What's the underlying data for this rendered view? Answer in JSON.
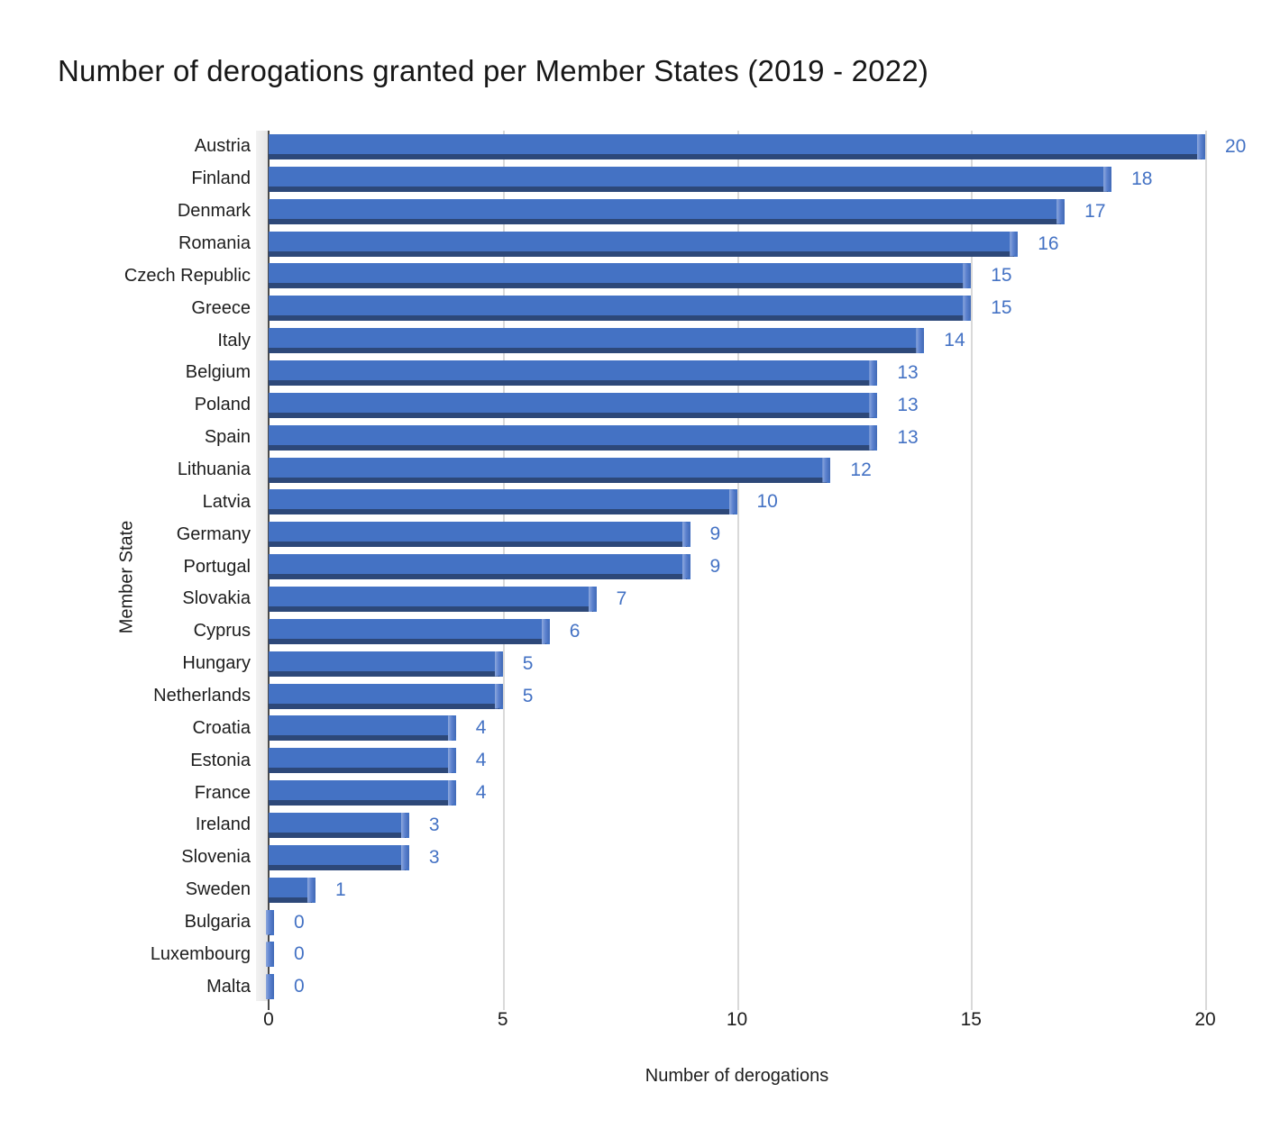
{
  "chart_data": {
    "type": "bar",
    "orientation": "horizontal",
    "title": "Number of derogations granted per Member States (2019 - 2022)",
    "xlabel": "Number of derogations",
    "ylabel": "Member State",
    "categories": [
      "Austria",
      "Finland",
      "Denmark",
      "Romania",
      "Czech Republic",
      "Greece",
      "Italy",
      "Belgium",
      "Poland",
      "Spain",
      "Lithuania",
      "Latvia",
      "Germany",
      "Portugal",
      "Slovakia",
      "Cyprus",
      "Hungary",
      "Netherlands",
      "Croatia",
      "Estonia",
      "France",
      "Ireland",
      "Slovenia",
      "Sweden",
      "Bulgaria",
      "Luxembourg",
      "Malta"
    ],
    "values": [
      20,
      18,
      17,
      16,
      15,
      15,
      14,
      13,
      13,
      13,
      12,
      10,
      9,
      9,
      7,
      6,
      5,
      5,
      4,
      4,
      4,
      3,
      3,
      1,
      0,
      0,
      0
    ],
    "xlim": [
      0,
      20
    ],
    "xticks": [
      0,
      5,
      10,
      15,
      20
    ],
    "grid": true,
    "data_labels": true,
    "legend": "none",
    "colors": {
      "bar": "#4472C4",
      "bar_shadow": "#2d4879",
      "bar_bevel": "#8fa9dd",
      "value_label": "#4472C4",
      "gridline": "#d9d9d9",
      "axis_line": "#4a4a4a",
      "text": "#1d1d1d",
      "wall": "#ececec",
      "background": "#ffffff"
    }
  }
}
